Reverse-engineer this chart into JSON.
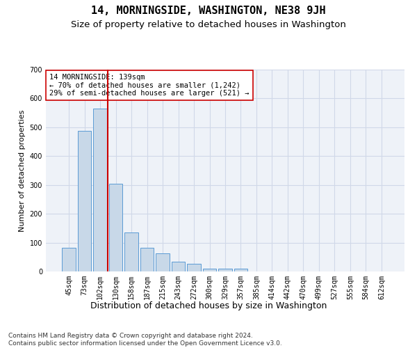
{
  "title": "14, MORNINGSIDE, WASHINGTON, NE38 9JH",
  "subtitle": "Size of property relative to detached houses in Washington",
  "xlabel": "Distribution of detached houses by size in Washington",
  "ylabel": "Number of detached properties",
  "categories": [
    "45sqm",
    "73sqm",
    "102sqm",
    "130sqm",
    "158sqm",
    "187sqm",
    "215sqm",
    "243sqm",
    "272sqm",
    "300sqm",
    "329sqm",
    "357sqm",
    "385sqm",
    "414sqm",
    "442sqm",
    "470sqm",
    "499sqm",
    "527sqm",
    "555sqm",
    "584sqm",
    "612sqm"
  ],
  "values": [
    82,
    487,
    566,
    303,
    135,
    83,
    63,
    33,
    27,
    10,
    10,
    10,
    0,
    0,
    0,
    0,
    0,
    0,
    0,
    0,
    0
  ],
  "bar_color": "#c8d8e8",
  "bar_edge_color": "#5b9bd5",
  "grid_color": "#d0d8e8",
  "bg_color": "#eef2f8",
  "vline_color": "#cc0000",
  "annotation_text": "14 MORNINGSIDE: 139sqm\n← 70% of detached houses are smaller (1,242)\n29% of semi-detached houses are larger (521) →",
  "annotation_box_color": "#ffffff",
  "annotation_box_edge": "#cc0000",
  "footer": "Contains HM Land Registry data © Crown copyright and database right 2024.\nContains public sector information licensed under the Open Government Licence v3.0.",
  "ylim": [
    0,
    700
  ],
  "yticks": [
    0,
    100,
    200,
    300,
    400,
    500,
    600,
    700
  ],
  "title_fontsize": 11,
  "subtitle_fontsize": 9.5,
  "xlabel_fontsize": 9,
  "ylabel_fontsize": 8,
  "tick_fontsize": 7,
  "annotation_fontsize": 7.5,
  "footer_fontsize": 6.5
}
